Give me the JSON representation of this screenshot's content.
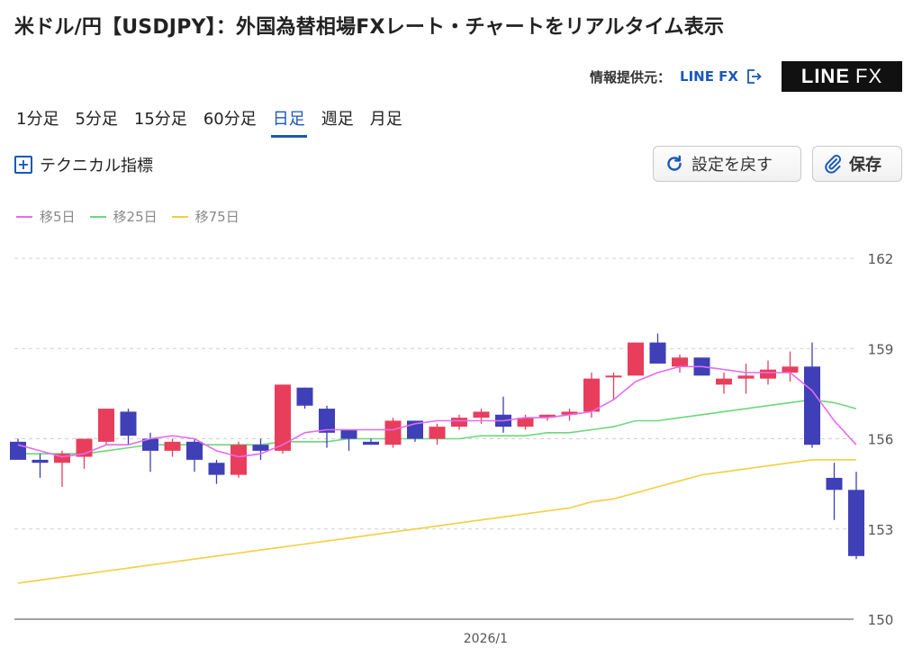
{
  "header": {
    "title": "米ドル/円【USDJPY】：外国為替相場FXレート・チャートをリアルタイム表示",
    "provider_label": "情報提供元：",
    "provider_link": "LINE FX",
    "logo_main": "LINE",
    "logo_sub": "FX"
  },
  "tabs": [
    {
      "label": "1分足"
    },
    {
      "label": "5分足"
    },
    {
      "label": "15分足"
    },
    {
      "label": "60分足"
    },
    {
      "label": "日足",
      "active": true
    },
    {
      "label": "週足"
    },
    {
      "label": "月足"
    }
  ],
  "toolbar": {
    "technical_label": "テクニカル指標",
    "reset_label": "設定を戻す",
    "save_label": "保存"
  },
  "legend": [
    {
      "label": "移5日",
      "color": "#e46cf0"
    },
    {
      "label": "移25日",
      "color": "#6cd87c"
    },
    {
      "label": "移75日",
      "color": "#f3cf3f"
    }
  ],
  "chart_data": {
    "type": "candlestick",
    "y_ticks": [
      150,
      153,
      156,
      159,
      162
    ],
    "ylim": [
      150,
      162
    ],
    "x_tick_labels": [
      {
        "index": 20,
        "label": "2026/1"
      }
    ],
    "grid": true,
    "colors": {
      "up": "#e83e5c",
      "down": "#3f3fb7"
    },
    "candles": [
      {
        "o": 155.9,
        "h": 156.0,
        "l": 155.3,
        "c": 155.3
      },
      {
        "o": 155.3,
        "h": 155.5,
        "l": 154.7,
        "c": 155.2
      },
      {
        "o": 155.2,
        "h": 155.6,
        "l": 154.4,
        "c": 155.5
      },
      {
        "o": 155.4,
        "h": 156.0,
        "l": 155.0,
        "c": 156.0
      },
      {
        "o": 155.9,
        "h": 157.0,
        "l": 155.8,
        "c": 157.0
      },
      {
        "o": 156.9,
        "h": 157.0,
        "l": 155.8,
        "c": 156.1
      },
      {
        "o": 156.0,
        "h": 156.2,
        "l": 154.9,
        "c": 155.6
      },
      {
        "o": 155.6,
        "h": 156.0,
        "l": 155.4,
        "c": 155.9
      },
      {
        "o": 155.9,
        "h": 156.0,
        "l": 154.9,
        "c": 155.3
      },
      {
        "o": 155.2,
        "h": 155.3,
        "l": 154.5,
        "c": 154.8
      },
      {
        "o": 154.8,
        "h": 155.9,
        "l": 154.7,
        "c": 155.8
      },
      {
        "o": 155.8,
        "h": 156.0,
        "l": 155.3,
        "c": 155.6
      },
      {
        "o": 155.6,
        "h": 157.8,
        "l": 155.5,
        "c": 157.8
      },
      {
        "o": 157.7,
        "h": 157.7,
        "l": 157.0,
        "c": 157.1
      },
      {
        "o": 157.0,
        "h": 157.1,
        "l": 155.7,
        "c": 156.2
      },
      {
        "o": 156.3,
        "h": 156.3,
        "l": 155.6,
        "c": 156.0
      },
      {
        "o": 155.9,
        "h": 156.0,
        "l": 155.8,
        "c": 155.8
      },
      {
        "o": 155.8,
        "h": 156.7,
        "l": 155.7,
        "c": 156.6
      },
      {
        "o": 156.6,
        "h": 156.6,
        "l": 155.9,
        "c": 156.0
      },
      {
        "o": 156.0,
        "h": 156.5,
        "l": 155.8,
        "c": 156.4
      },
      {
        "o": 156.4,
        "h": 156.8,
        "l": 156.3,
        "c": 156.7
      },
      {
        "o": 156.7,
        "h": 157.0,
        "l": 156.5,
        "c": 156.9
      },
      {
        "o": 156.8,
        "h": 157.4,
        "l": 156.2,
        "c": 156.4
      },
      {
        "o": 156.4,
        "h": 156.8,
        "l": 156.3,
        "c": 156.7
      },
      {
        "o": 156.7,
        "h": 156.8,
        "l": 156.6,
        "c": 156.8
      },
      {
        "o": 156.8,
        "h": 157.0,
        "l": 156.6,
        "c": 156.9
      },
      {
        "o": 156.9,
        "h": 158.2,
        "l": 156.7,
        "c": 158.0
      },
      {
        "o": 158.1,
        "h": 158.2,
        "l": 157.3,
        "c": 158.1
      },
      {
        "o": 158.1,
        "h": 159.2,
        "l": 158.1,
        "c": 159.2
      },
      {
        "o": 159.2,
        "h": 159.5,
        "l": 158.6,
        "c": 158.5
      },
      {
        "o": 158.4,
        "h": 158.8,
        "l": 158.2,
        "c": 158.7
      },
      {
        "o": 158.7,
        "h": 158.7,
        "l": 158.1,
        "c": 158.1
      },
      {
        "o": 157.8,
        "h": 158.2,
        "l": 157.5,
        "c": 158.0
      },
      {
        "o": 158.0,
        "h": 158.5,
        "l": 157.5,
        "c": 158.1
      },
      {
        "o": 158.0,
        "h": 158.6,
        "l": 157.8,
        "c": 158.3
      },
      {
        "o": 158.2,
        "h": 158.9,
        "l": 157.9,
        "c": 158.4
      },
      {
        "o": 158.4,
        "h": 159.2,
        "l": 155.7,
        "c": 155.8
      },
      {
        "o": 154.7,
        "h": 155.2,
        "l": 153.3,
        "c": 154.3
      },
      {
        "o": 154.3,
        "h": 154.9,
        "l": 152.0,
        "c": 152.1
      }
    ],
    "ma5": [
      155.8,
      155.6,
      155.4,
      155.5,
      155.8,
      155.8,
      156.0,
      156.1,
      156.0,
      155.6,
      155.4,
      155.5,
      155.8,
      156.2,
      156.3,
      156.3,
      156.3,
      156.3,
      156.5,
      156.6,
      156.6,
      156.6,
      156.6,
      156.7,
      156.7,
      156.8,
      156.9,
      157.3,
      157.9,
      158.2,
      158.4,
      158.4,
      158.3,
      158.2,
      158.2,
      158.2,
      157.6,
      156.6,
      155.8
    ],
    "ma25": [
      155.5,
      155.5,
      155.5,
      155.5,
      155.6,
      155.7,
      155.8,
      155.8,
      155.8,
      155.8,
      155.8,
      155.8,
      155.9,
      155.9,
      155.9,
      156.0,
      156.0,
      156.0,
      156.0,
      156.0,
      156.0,
      156.1,
      156.1,
      156.1,
      156.2,
      156.2,
      156.3,
      156.4,
      156.6,
      156.6,
      156.7,
      156.8,
      156.9,
      157.0,
      157.1,
      157.2,
      157.3,
      157.2,
      157.0
    ],
    "ma75": [
      151.2,
      151.3,
      151.4,
      151.5,
      151.6,
      151.7,
      151.8,
      151.9,
      152.0,
      152.1,
      152.2,
      152.3,
      152.4,
      152.5,
      152.6,
      152.7,
      152.8,
      152.9,
      153.0,
      153.1,
      153.2,
      153.3,
      153.4,
      153.5,
      153.6,
      153.7,
      153.9,
      154.0,
      154.2,
      154.4,
      154.6,
      154.8,
      154.9,
      155.0,
      155.1,
      155.2,
      155.3,
      155.3,
      155.3
    ]
  }
}
